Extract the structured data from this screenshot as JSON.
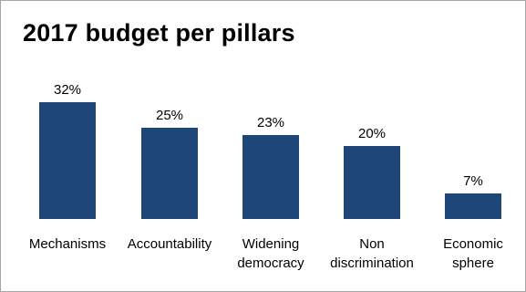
{
  "chart_data": {
    "type": "bar",
    "title": "2017 budget per pillars",
    "categories": [
      [
        "Mechanisms"
      ],
      [
        "Accountability"
      ],
      [
        "Widening",
        "democracy"
      ],
      [
        "Non",
        "discrimination"
      ],
      [
        "Economic",
        "sphere"
      ]
    ],
    "values": [
      32,
      25,
      23,
      20,
      7
    ],
    "value_labels": [
      "32%",
      "25%",
      "23%",
      "20%",
      "7%"
    ],
    "unit": "%",
    "ylim": [
      0,
      32
    ],
    "bar_color": "#1f4678",
    "grid": false,
    "legend": "none"
  }
}
